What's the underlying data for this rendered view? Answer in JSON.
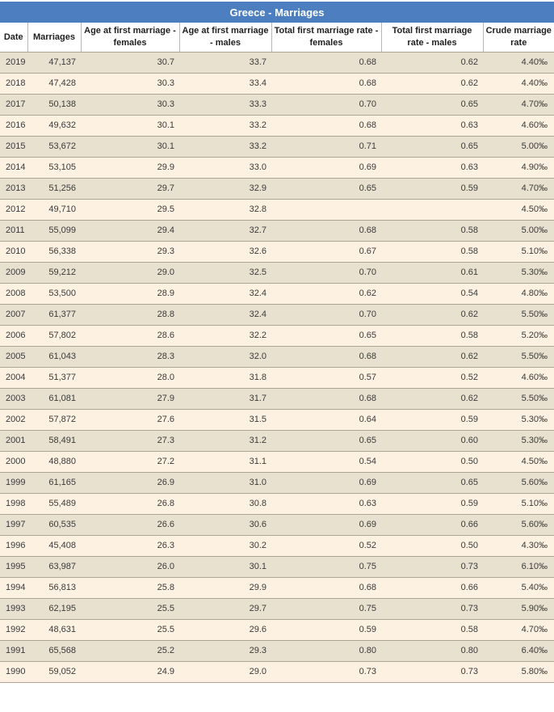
{
  "title": "Greece - Marriages",
  "colors": {
    "header_bar_bg": "#4d7ebf",
    "header_bar_text": "#ffffff",
    "row_odd_bg": "#e9e1d0",
    "row_even_bg": "#fdf2e2",
    "border_horizontal": "#aca496",
    "border_vertical": "#b6b6b6"
  },
  "chart_data": {
    "type": "table",
    "title": "Greece - Marriages",
    "columns": [
      "Date",
      "Marriages",
      "Age at first marriage - females",
      "Age at first marriage - males",
      "Total first marriage rate - females",
      "Total first marriage rate - males",
      "Crude marriage rate"
    ],
    "rows": [
      [
        "2019",
        "47,137",
        "30.7",
        "33.7",
        "0.68",
        "0.62",
        "4.40‰"
      ],
      [
        "2018",
        "47,428",
        "30.3",
        "33.4",
        "0.68",
        "0.62",
        "4.40‰"
      ],
      [
        "2017",
        "50,138",
        "30.3",
        "33.3",
        "0.70",
        "0.65",
        "4.70‰"
      ],
      [
        "2016",
        "49,632",
        "30.1",
        "33.2",
        "0.68",
        "0.63",
        "4.60‰"
      ],
      [
        "2015",
        "53,672",
        "30.1",
        "33.2",
        "0.71",
        "0.65",
        "5.00‰"
      ],
      [
        "2014",
        "53,105",
        "29.9",
        "33.0",
        "0.69",
        "0.63",
        "4.90‰"
      ],
      [
        "2013",
        "51,256",
        "29.7",
        "32.9",
        "0.65",
        "0.59",
        "4.70‰"
      ],
      [
        "2012",
        "49,710",
        "29.5",
        "32.8",
        "",
        "",
        "4.50‰"
      ],
      [
        "2011",
        "55,099",
        "29.4",
        "32.7",
        "0.68",
        "0.58",
        "5.00‰"
      ],
      [
        "2010",
        "56,338",
        "29.3",
        "32.6",
        "0.67",
        "0.58",
        "5.10‰"
      ],
      [
        "2009",
        "59,212",
        "29.0",
        "32.5",
        "0.70",
        "0.61",
        "5.30‰"
      ],
      [
        "2008",
        "53,500",
        "28.9",
        "32.4",
        "0.62",
        "0.54",
        "4.80‰"
      ],
      [
        "2007",
        "61,377",
        "28.8",
        "32.4",
        "0.70",
        "0.62",
        "5.50‰"
      ],
      [
        "2006",
        "57,802",
        "28.6",
        "32.2",
        "0.65",
        "0.58",
        "5.20‰"
      ],
      [
        "2005",
        "61,043",
        "28.3",
        "32.0",
        "0.68",
        "0.62",
        "5.50‰"
      ],
      [
        "2004",
        "51,377",
        "28.0",
        "31.8",
        "0.57",
        "0.52",
        "4.60‰"
      ],
      [
        "2003",
        "61,081",
        "27.9",
        "31.7",
        "0.68",
        "0.62",
        "5.50‰"
      ],
      [
        "2002",
        "57,872",
        "27.6",
        "31.5",
        "0.64",
        "0.59",
        "5.30‰"
      ],
      [
        "2001",
        "58,491",
        "27.3",
        "31.2",
        "0.65",
        "0.60",
        "5.30‰"
      ],
      [
        "2000",
        "48,880",
        "27.2",
        "31.1",
        "0.54",
        "0.50",
        "4.50‰"
      ],
      [
        "1999",
        "61,165",
        "26.9",
        "31.0",
        "0.69",
        "0.65",
        "5.60‰"
      ],
      [
        "1998",
        "55,489",
        "26.8",
        "30.8",
        "0.63",
        "0.59",
        "5.10‰"
      ],
      [
        "1997",
        "60,535",
        "26.6",
        "30.6",
        "0.69",
        "0.66",
        "5.60‰"
      ],
      [
        "1996",
        "45,408",
        "26.3",
        "30.2",
        "0.52",
        "0.50",
        "4.30‰"
      ],
      [
        "1995",
        "63,987",
        "26.0",
        "30.1",
        "0.75",
        "0.73",
        "6.10‰"
      ],
      [
        "1994",
        "56,813",
        "25.8",
        "29.9",
        "0.68",
        "0.66",
        "5.40‰"
      ],
      [
        "1993",
        "62,195",
        "25.5",
        "29.7",
        "0.75",
        "0.73",
        "5.90‰"
      ],
      [
        "1992",
        "48,631",
        "25.5",
        "29.6",
        "0.59",
        "0.58",
        "4.70‰"
      ],
      [
        "1991",
        "65,568",
        "25.2",
        "29.3",
        "0.80",
        "0.80",
        "6.40‰"
      ],
      [
        "1990",
        "59,052",
        "24.9",
        "29.0",
        "0.73",
        "0.73",
        "5.80‰"
      ]
    ]
  }
}
